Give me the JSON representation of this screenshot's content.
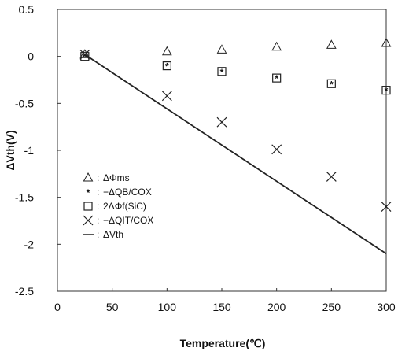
{
  "chart_data": {
    "type": "scatter",
    "title": "",
    "xlabel": "Temperature(℃)",
    "ylabel": "ΔVth(V)",
    "xlim": [
      0,
      300
    ],
    "ylim": [
      -2.5,
      0.5
    ],
    "xticks": [
      0,
      50,
      100,
      150,
      200,
      250,
      300
    ],
    "yticks": [
      0.5,
      0,
      -0.5,
      -1,
      -1.5,
      -2,
      -2.5
    ],
    "xtick_labels": [
      "0",
      "50",
      "100",
      "150",
      "200",
      "250",
      "300"
    ],
    "ytick_labels": [
      "0.5",
      "0",
      "-0.5",
      "-1",
      "-1.5",
      "-2",
      "-2.5"
    ],
    "grid": false,
    "legend_position": "lower-left",
    "series": [
      {
        "name": "ΔΦms",
        "marker": "triangle",
        "x": [
          25,
          100,
          150,
          200,
          250,
          300
        ],
        "y": [
          0.02,
          0.05,
          0.07,
          0.1,
          0.12,
          0.14
        ]
      },
      {
        "name": "−ΔQB/COX",
        "marker": "star",
        "x": [
          25,
          100,
          150,
          200,
          250,
          300
        ],
        "y": [
          0.0,
          -0.1,
          -0.16,
          -0.23,
          -0.29,
          -0.36
        ]
      },
      {
        "name": "2ΔΦf(SiC)",
        "marker": "square",
        "x": [
          25,
          100,
          150,
          200,
          250,
          300
        ],
        "y": [
          0.0,
          -0.1,
          -0.16,
          -0.23,
          -0.29,
          -0.36
        ]
      },
      {
        "name": "−ΔQIT/COX",
        "marker": "x",
        "x": [
          25,
          100,
          150,
          200,
          250,
          300
        ],
        "y": [
          0.02,
          -0.42,
          -0.7,
          -0.99,
          -1.28,
          -1.6
        ]
      },
      {
        "name": "ΔVth",
        "marker": "line",
        "x": [
          25,
          300
        ],
        "y": [
          0.02,
          -2.1
        ]
      }
    ]
  }
}
